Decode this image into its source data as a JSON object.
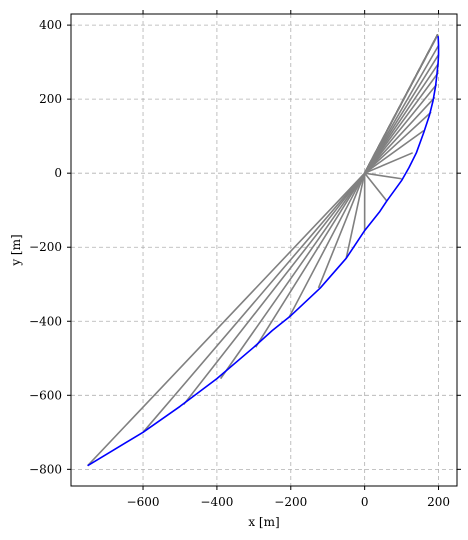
{
  "chart_data": {
    "type": "line",
    "title": "",
    "xlabel": "x [m]",
    "ylabel": "y [m]",
    "xlim": [
      -795,
      250
    ],
    "ylim": [
      -845,
      430
    ],
    "x_ticks": [
      -600,
      -400,
      -200,
      0,
      200
    ],
    "x_tick_labels": [
      "−600",
      "−400",
      "−200",
      "0",
      "200"
    ],
    "y_ticks": [
      400,
      200,
      0,
      -200,
      -400,
      -600,
      -800
    ],
    "y_tick_labels": [
      "400",
      "200",
      "0",
      "−200",
      "−400",
      "−600",
      "−800"
    ],
    "grid": true,
    "colors": {
      "curve": "#0000ff",
      "rays": "#808080",
      "grid": "#b0b0b0"
    },
    "series": [
      {
        "kind": "curve",
        "points": [
          [
            -750,
            -790
          ],
          [
            -700,
            -760
          ],
          [
            -600,
            -700
          ],
          [
            -500,
            -630
          ],
          [
            -400,
            -555
          ],
          [
            -300,
            -470
          ],
          [
            -250,
            -425
          ],
          [
            -200,
            -385
          ],
          [
            -120,
            -310
          ],
          [
            -50,
            -230
          ],
          [
            0,
            -155
          ],
          [
            40,
            -105
          ],
          [
            60,
            -75
          ],
          [
            100,
            -20
          ],
          [
            120,
            15
          ],
          [
            140,
            55
          ],
          [
            160,
            110
          ],
          [
            175,
            155
          ],
          [
            185,
            195
          ],
          [
            192,
            235
          ],
          [
            196,
            270
          ],
          [
            199,
            300
          ],
          [
            200,
            320
          ],
          [
            200,
            345
          ],
          [
            199,
            370
          ]
        ]
      },
      {
        "kind": "rays",
        "origin": [
          0,
          0
        ],
        "apex": [
          198,
          375
        ],
        "ends": [
          [
            -750,
            -790
          ],
          [
            -600,
            -700
          ],
          [
            -490,
            -625
          ],
          [
            -390,
            -555
          ],
          [
            -295,
            -470
          ],
          [
            -205,
            -390
          ],
          [
            -125,
            -310
          ],
          [
            -50,
            -230
          ],
          [
            0,
            -155
          ],
          [
            60,
            -75
          ],
          [
            100,
            -15
          ],
          [
            130,
            55
          ],
          [
            160,
            115
          ],
          [
            180,
            165
          ],
          [
            190,
            205
          ],
          [
            195,
            240
          ],
          [
            198,
            270
          ],
          [
            199,
            295
          ],
          [
            200,
            320
          ],
          [
            200,
            345
          ]
        ]
      }
    ]
  }
}
